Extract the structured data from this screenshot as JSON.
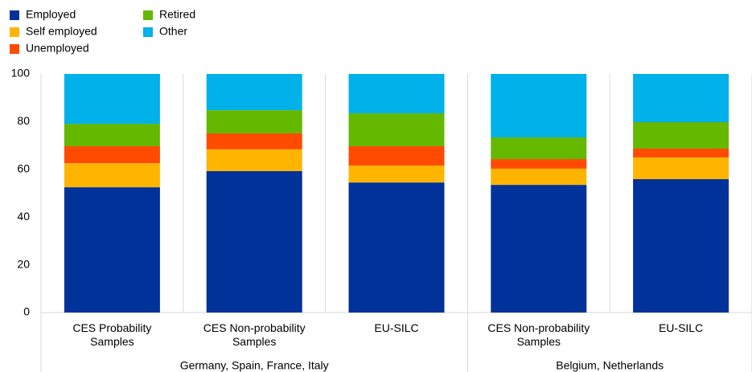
{
  "chart_data": {
    "type": "stacked_bar",
    "categories": [
      "CES Probability Samples",
      "CES Non-probability Samples",
      "EU-SILC",
      "CES Non-probability Samples",
      "EU-SILC"
    ],
    "groups": [
      {
        "name": "Germany, Spain, France, Italy",
        "count": 3
      },
      {
        "name": "Belgium, Netherlands",
        "count": 2
      }
    ],
    "series": [
      {
        "name": "Employed",
        "color": "#003299",
        "values": [
          52.5,
          59.3,
          54.5,
          53.5,
          55.9
        ]
      },
      {
        "name": "Self employed",
        "color": "#ffb400",
        "values": [
          10.1,
          9.1,
          7.1,
          6.8,
          9.1
        ]
      },
      {
        "name": "Unemployed",
        "color": "#ff4b00",
        "values": [
          7.1,
          6.7,
          8.1,
          4.0,
          3.7
        ]
      },
      {
        "name": "Retired",
        "color": "#65b800",
        "values": [
          9.4,
          9.7,
          13.8,
          9.1,
          11.1
        ]
      },
      {
        "name": "Other",
        "color": "#00b1ea",
        "values": [
          20.9,
          15.2,
          16.5,
          26.6,
          20.2
        ]
      }
    ],
    "ylim": [
      0,
      100
    ],
    "yticks": [
      0,
      20,
      40,
      60,
      80,
      100
    ],
    "grid": false,
    "legend": "top-left"
  }
}
